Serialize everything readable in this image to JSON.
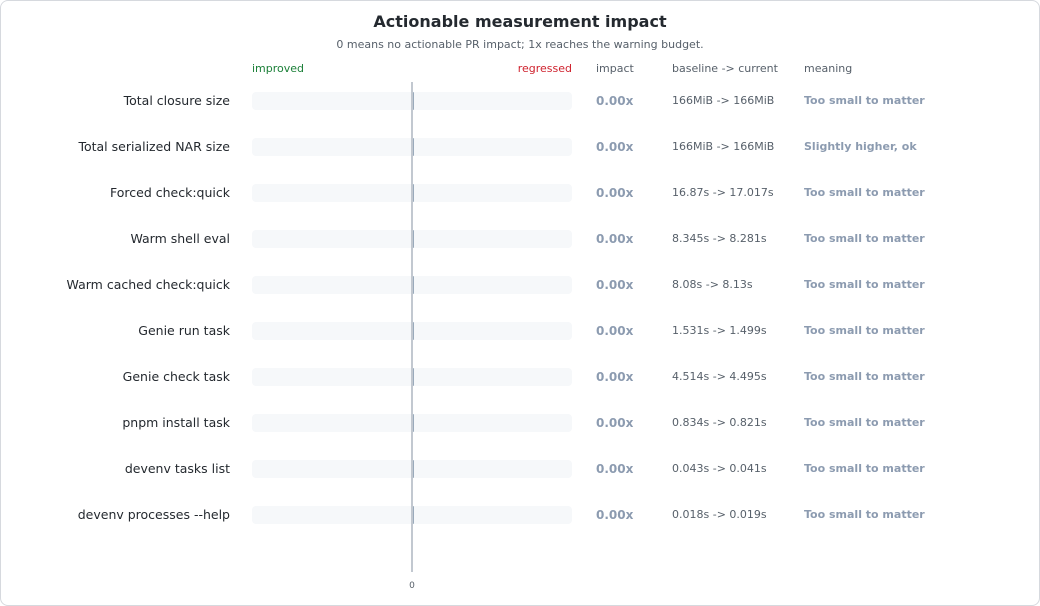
{
  "chart_data": {
    "type": "bar",
    "title": "Actionable measurement impact",
    "subtitle": "0 means no actionable PR impact; 1x reaches the warning budget.",
    "headers": {
      "improved": "improved",
      "regressed": "regressed",
      "impact": "impact",
      "baseline_current": "baseline -> current",
      "meaning": "meaning"
    },
    "x_tick": "0",
    "xlim": [
      -1,
      1
    ],
    "colors": {
      "improved": "#1a7f37",
      "regressed": "#cf222e",
      "neutral": "#8c9bb0"
    },
    "rows": [
      {
        "label": "Total closure size",
        "value": 0.0,
        "impact": "0.00x",
        "baseline_current": "166MiB -> 166MiB",
        "meaning": "Too small to matter"
      },
      {
        "label": "Total serialized NAR size",
        "value": 0.0,
        "impact": "0.00x",
        "baseline_current": "166MiB -> 166MiB",
        "meaning": "Slightly higher, ok"
      },
      {
        "label": "Forced check:quick",
        "value": 0.0,
        "impact": "0.00x",
        "baseline_current": "16.87s -> 17.017s",
        "meaning": "Too small to matter"
      },
      {
        "label": "Warm shell eval",
        "value": 0.0,
        "impact": "0.00x",
        "baseline_current": "8.345s -> 8.281s",
        "meaning": "Too small to matter"
      },
      {
        "label": "Warm cached check:quick",
        "value": 0.0,
        "impact": "0.00x",
        "baseline_current": "8.08s -> 8.13s",
        "meaning": "Too small to matter"
      },
      {
        "label": "Genie run task",
        "value": 0.0,
        "impact": "0.00x",
        "baseline_current": "1.531s -> 1.499s",
        "meaning": "Too small to matter"
      },
      {
        "label": "Genie check task",
        "value": 0.0,
        "impact": "0.00x",
        "baseline_current": "4.514s -> 4.495s",
        "meaning": "Too small to matter"
      },
      {
        "label": "pnpm install task",
        "value": 0.0,
        "impact": "0.00x",
        "baseline_current": "0.834s -> 0.821s",
        "meaning": "Too small to matter"
      },
      {
        "label": "devenv tasks list",
        "value": 0.0,
        "impact": "0.00x",
        "baseline_current": "0.043s -> 0.041s",
        "meaning": "Too small to matter"
      },
      {
        "label": "devenv processes --help",
        "value": 0.0,
        "impact": "0.00x",
        "baseline_current": "0.018s -> 0.019s",
        "meaning": "Too small to matter"
      }
    ]
  }
}
